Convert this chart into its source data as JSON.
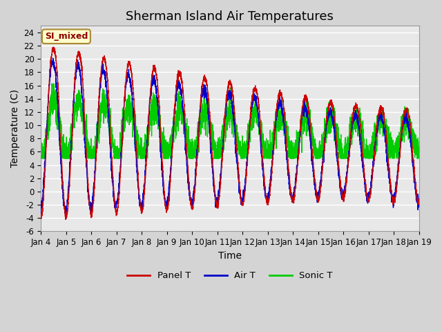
{
  "title": "Sherman Island Air Temperatures",
  "xlabel": "Time",
  "ylabel": "Temperature (C)",
  "ylim": [
    -6,
    25
  ],
  "yticks": [
    -6,
    -4,
    -2,
    0,
    2,
    4,
    6,
    8,
    10,
    12,
    14,
    16,
    18,
    20,
    22,
    24
  ],
  "xtick_labels": [
    "Jan 4",
    "Jan 5",
    "Jan 6",
    "Jan 7",
    "Jan 8",
    "Jan 9",
    "Jan 10",
    "Jan 11",
    "Jan 12",
    "Jan 13",
    "Jan 14",
    "Jan 15",
    "Jan 16",
    "Jan 17",
    "Jan 18",
    "Jan 19"
  ],
  "panel_t_color": "#cc0000",
  "air_t_color": "#0000cc",
  "sonic_t_color": "#00cc00",
  "fig_bg_color": "#d4d4d4",
  "plot_bg_color": "#e8e8e8",
  "grid_color": "#ffffff",
  "annotation_text": "SI_mixed",
  "annotation_bg": "#ffffcc",
  "annotation_border": "#aa8833",
  "legend_entries": [
    "Panel T",
    "Air T",
    "Sonic T"
  ],
  "n_points": 3600,
  "days": 15,
  "title_fontsize": 13,
  "label_fontsize": 10,
  "tick_fontsize": 8.5
}
